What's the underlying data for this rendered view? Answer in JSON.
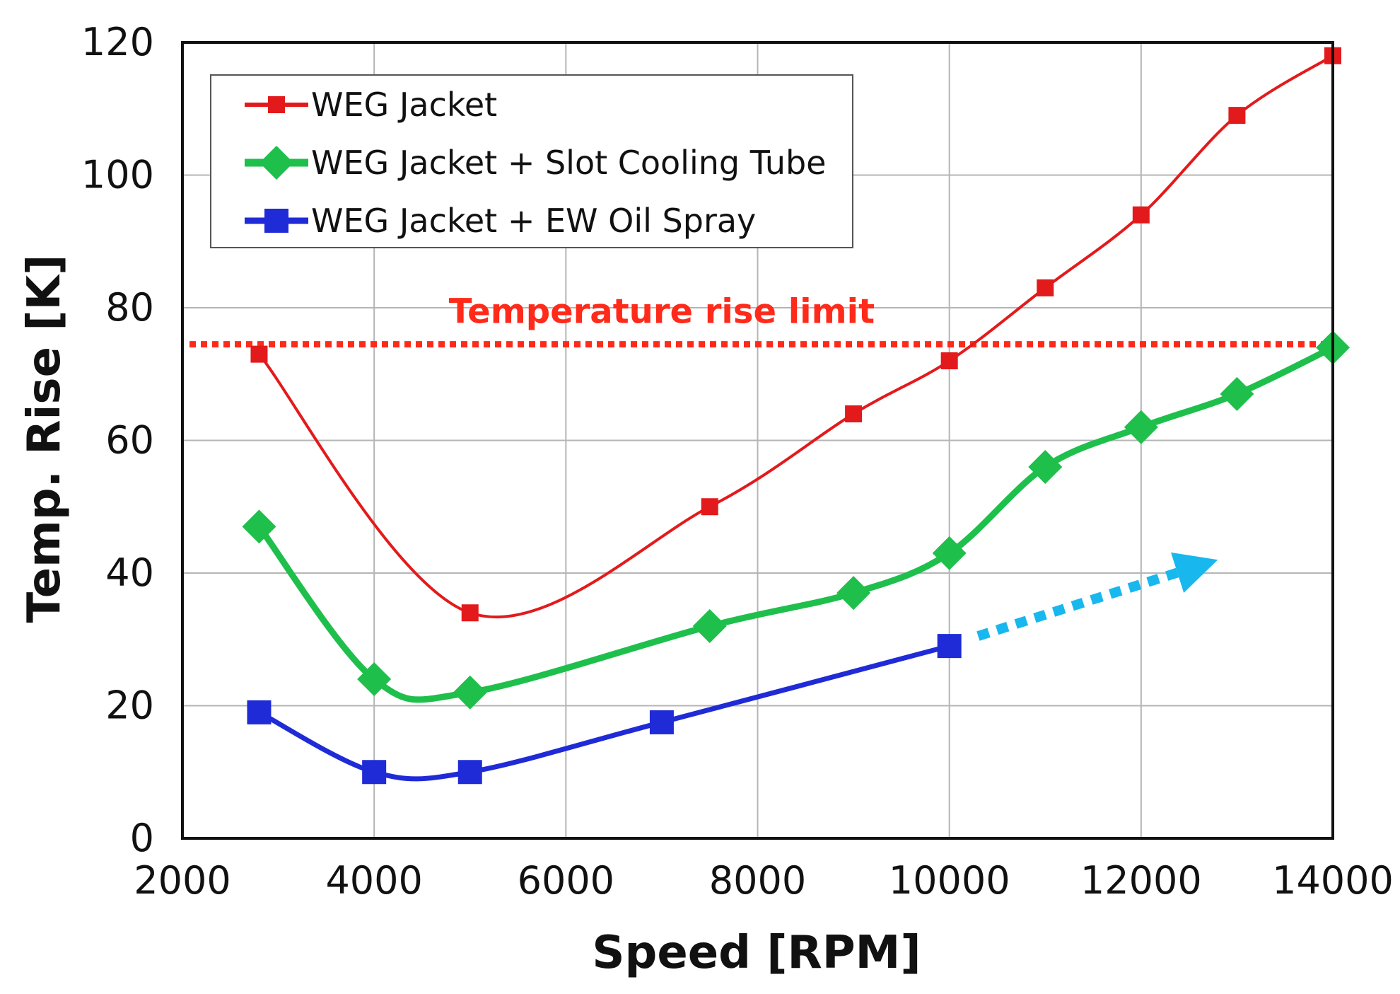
{
  "chart_data": {
    "type": "line",
    "title": "",
    "xlabel": "Speed [RPM]",
    "ylabel": "Temp. Rise [K]",
    "xlim": [
      2000,
      14000
    ],
    "ylim": [
      0,
      120
    ],
    "xticks": [
      2000,
      4000,
      6000,
      8000,
      10000,
      12000,
      14000
    ],
    "yticks": [
      0,
      20,
      40,
      60,
      80,
      100,
      120
    ],
    "xtick_labels": [
      "2000",
      "4000",
      "6000",
      "8000",
      "10000",
      "12000",
      "14000"
    ],
    "ytick_labels": [
      "0",
      "20",
      "40",
      "60",
      "80",
      "100",
      "120"
    ],
    "grid": true,
    "legend_position": "top-left",
    "series": [
      {
        "name": "WEG Jacket",
        "color": "#e31a1c",
        "marker": "square-small",
        "x": [
          2800,
          5000,
          7500,
          9000,
          10000,
          11000,
          12000,
          13000,
          14000
        ],
        "y": [
          73,
          34,
          50,
          64,
          72,
          83,
          94,
          109,
          118
        ]
      },
      {
        "name": "WEG Jacket + Slot Cooling Tube",
        "color": "#1fbf4c",
        "marker": "diamond",
        "x": [
          2800,
          4000,
          5000,
          7500,
          9000,
          10000,
          11000,
          12000,
          13000,
          14000
        ],
        "y": [
          47,
          24,
          22,
          32,
          37,
          43,
          56,
          62,
          67,
          74
        ]
      },
      {
        "name": "WEG Jacket + EW Oil Spray",
        "color": "#1f2bd6",
        "marker": "square-large",
        "x": [
          2800,
          4000,
          5000,
          7000,
          10000
        ],
        "y": [
          19,
          10,
          10,
          17.5,
          29
        ]
      }
    ],
    "annotations": {
      "limit_line": {
        "label": "Temperature rise limit",
        "y": 74.5,
        "color": "#ff2a1a"
      },
      "trend_arrow": {
        "from": [
          10300,
          30.5
        ],
        "to": [
          12800,
          42
        ],
        "color": "#18b8ee"
      }
    }
  }
}
